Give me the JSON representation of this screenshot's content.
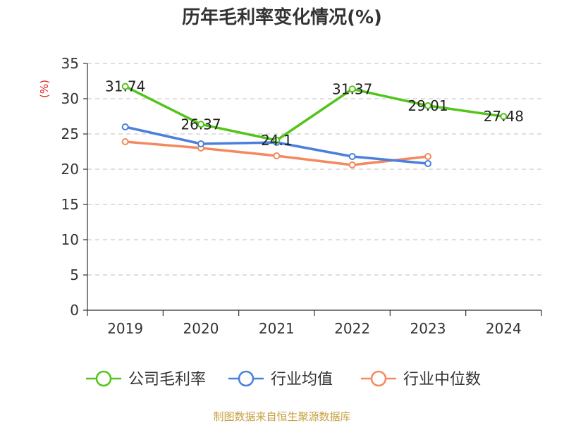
{
  "chart_data": {
    "type": "line",
    "title": "历年毛利率变化情况(%)",
    "xlabel": "",
    "ylabel": "(%)",
    "categories": [
      "2019",
      "2020",
      "2021",
      "2022",
      "2023",
      "2024"
    ],
    "ylim": [
      0,
      35
    ],
    "yticks": [
      0,
      5,
      10,
      15,
      20,
      25,
      30,
      35
    ],
    "grid": "horizontal-dashed",
    "legend_position": "bottom",
    "series": [
      {
        "name": "公司毛利率",
        "color": "#52c41a",
        "values": [
          31.74,
          26.37,
          24.1,
          31.37,
          29.01,
          27.48
        ],
        "labels": [
          "31.74",
          "26.37",
          "24.1",
          "31.37",
          "29.01",
          "27.48"
        ]
      },
      {
        "name": "行业均值",
        "color": "#4a7fdc",
        "values": [
          26.0,
          23.6,
          23.8,
          21.8,
          20.8,
          null
        ]
      },
      {
        "name": "行业中位数",
        "color": "#f4895f",
        "values": [
          23.9,
          23.0,
          21.9,
          20.6,
          21.8,
          null
        ]
      }
    ]
  },
  "source": "制图数据来自恒生聚源数据库"
}
